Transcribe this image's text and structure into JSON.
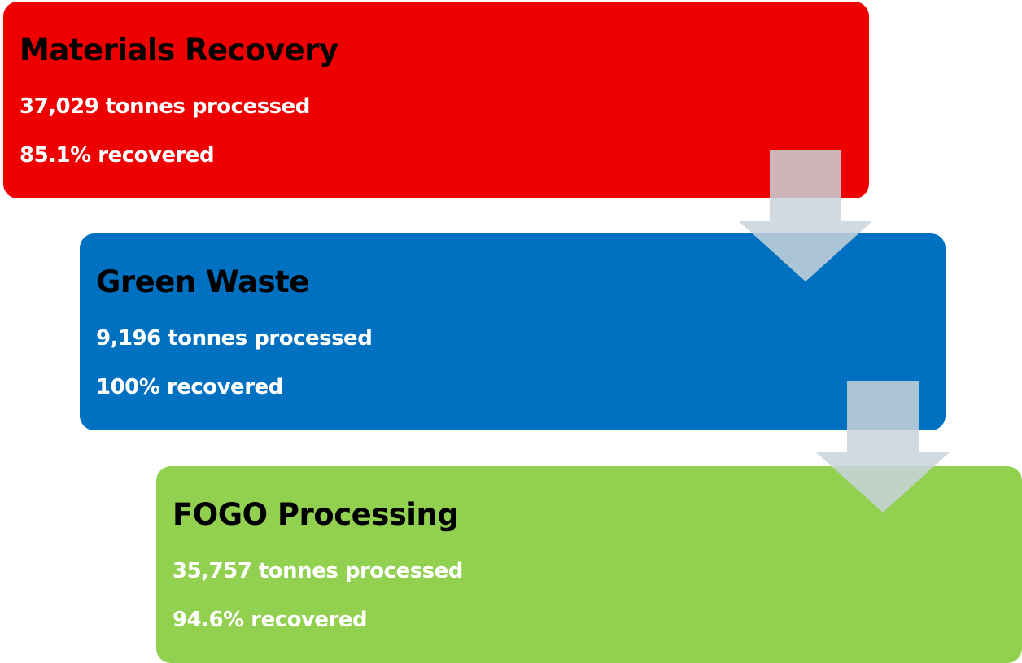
{
  "nodes": [
    {
      "label": "Materials Recovery",
      "processed": "37,029 tonnes processed",
      "recovered": "85.1% recovered"
    },
    {
      "label": "Green Waste",
      "processed": "9,196 tonnes processed",
      "recovered": "100% recovered"
    },
    {
      "label": "FOGO Processing",
      "processed": "35,757 tonnes processed",
      "recovered": "94.6% recovered"
    }
  ]
}
